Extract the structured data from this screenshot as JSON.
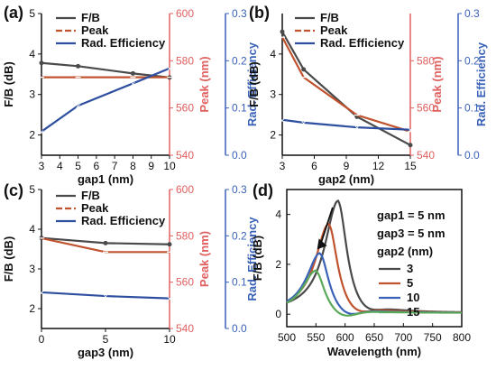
{
  "chart_data": [
    {
      "type": "line",
      "panel": "(a)",
      "xlabel": "gap1 (nm)",
      "xlim": [
        3,
        10
      ],
      "xticks": [
        "3",
        "4",
        "5",
        "6",
        "7",
        "8",
        "9",
        "10"
      ],
      "x": [
        3,
        5,
        8,
        10
      ],
      "axes": {
        "left": {
          "label": "F/B (dB)",
          "lim": [
            1.5,
            5
          ],
          "ticks": [
            "2",
            "3",
            "4",
            "5"
          ]
        },
        "mid": {
          "label": "Peak (nm)",
          "lim": [
            540,
            600
          ],
          "ticks": [
            "540",
            "560",
            "580",
            "600"
          ]
        },
        "right": {
          "label": "Rad. Efficiency",
          "lim": [
            0,
            0.3
          ],
          "ticks": [
            "0.0",
            "0.1",
            "0.2",
            "0.3"
          ]
        }
      },
      "series": [
        {
          "name": "F/B",
          "axis": "left",
          "values": [
            3.78,
            3.7,
            3.52,
            3.42
          ]
        },
        {
          "name": "Peak",
          "axis": "mid",
          "values": [
            573,
            573,
            573,
            573
          ]
        },
        {
          "name": "Rad. Efficiency",
          "axis": "right",
          "values": [
            0.05,
            0.105,
            0.152,
            0.184
          ]
        }
      ]
    },
    {
      "type": "line",
      "panel": "(b)",
      "xlabel": "gap2 (nm)",
      "xlim": [
        3,
        15
      ],
      "xticks": [
        "3",
        "6",
        "9",
        "12",
        "15"
      ],
      "x": [
        3,
        5,
        10,
        15
      ],
      "axes": {
        "left": {
          "label": "F/B (dB)",
          "lim": [
            1.5,
            5
          ],
          "ticks": [
            "2",
            "3",
            "4"
          ]
        },
        "mid": {
          "label": "Peak (nm)",
          "lim": [
            540,
            600
          ],
          "ticks": [
            "540",
            "560",
            "580"
          ]
        },
        "right": {
          "label": "Rad. Efficiency",
          "lim": [
            0,
            0.3
          ],
          "ticks": [
            "0.0",
            "0.1",
            "0.2",
            "0.3"
          ]
        }
      },
      "series": [
        {
          "name": "F/B",
          "axis": "left",
          "values": [
            4.55,
            3.62,
            2.45,
            1.75
          ]
        },
        {
          "name": "Peak",
          "axis": "mid",
          "values": [
            590,
            573,
            557,
            550
          ]
        },
        {
          "name": "Rad. Efficiency",
          "axis": "right",
          "values": [
            0.075,
            0.069,
            0.059,
            0.054
          ]
        }
      ]
    },
    {
      "type": "line",
      "panel": "(c)",
      "xlabel": "gap3 (nm)",
      "xlim": [
        0,
        10
      ],
      "xticks": [
        "0",
        "5",
        "10"
      ],
      "x": [
        0,
        5,
        10
      ],
      "axes": {
        "left": {
          "label": "F/B (dB)",
          "lim": [
            1.5,
            5
          ],
          "ticks": [
            "2",
            "3",
            "4",
            "5"
          ]
        },
        "mid": {
          "label": "Peak (nm)",
          "lim": [
            540,
            600
          ],
          "ticks": [
            "540",
            "560",
            "580",
            "600"
          ]
        },
        "right": {
          "label": "Rad. Efficiency",
          "lim": [
            0,
            0.3
          ],
          "ticks": [
            "0.0",
            "0.1",
            "0.2",
            "0.3"
          ]
        }
      },
      "series": [
        {
          "name": "F/B",
          "axis": "left",
          "values": [
            3.78,
            3.65,
            3.62
          ]
        },
        {
          "name": "Peak",
          "axis": "mid",
          "values": [
            579,
            573,
            573
          ]
        },
        {
          "name": "Rad. Efficiency",
          "axis": "right",
          "values": [
            0.078,
            0.07,
            0.065
          ]
        }
      ]
    },
    {
      "type": "line",
      "panel": "(d)",
      "xlabel": "Wavelength (nm)",
      "ylabel": "F/B (dB)",
      "xlim": [
        500,
        800
      ],
      "ylim": [
        -0.5,
        5
      ],
      "xticks": [
        "500",
        "550",
        "600",
        "650",
        "700",
        "750",
        "800"
      ],
      "yticks": [
        "0",
        "2",
        "4"
      ],
      "annotations": [
        "gap1 = 5 nm",
        "gap3 = 5 nm"
      ],
      "legend_title": "gap2 (nm)",
      "series": [
        {
          "name": "3",
          "peak_x": 588,
          "peak_y": 4.55
        },
        {
          "name": "5",
          "peak_x": 572,
          "peak_y": 3.62
        },
        {
          "name": "10",
          "peak_x": 557,
          "peak_y": 2.45
        },
        {
          "name": "15",
          "peak_x": 550,
          "peak_y": 1.75
        }
      ]
    }
  ],
  "colors": {
    "fb": "#4a4a4a",
    "peak": "#c0522e",
    "eff": "#2e4fa0",
    "peak_axis": "#e06060",
    "eff_axis": "#3a62b8",
    "d_series": [
      "#4a4a4a",
      "#c0522e",
      "#3a62b8",
      "#5aa85a"
    ]
  }
}
